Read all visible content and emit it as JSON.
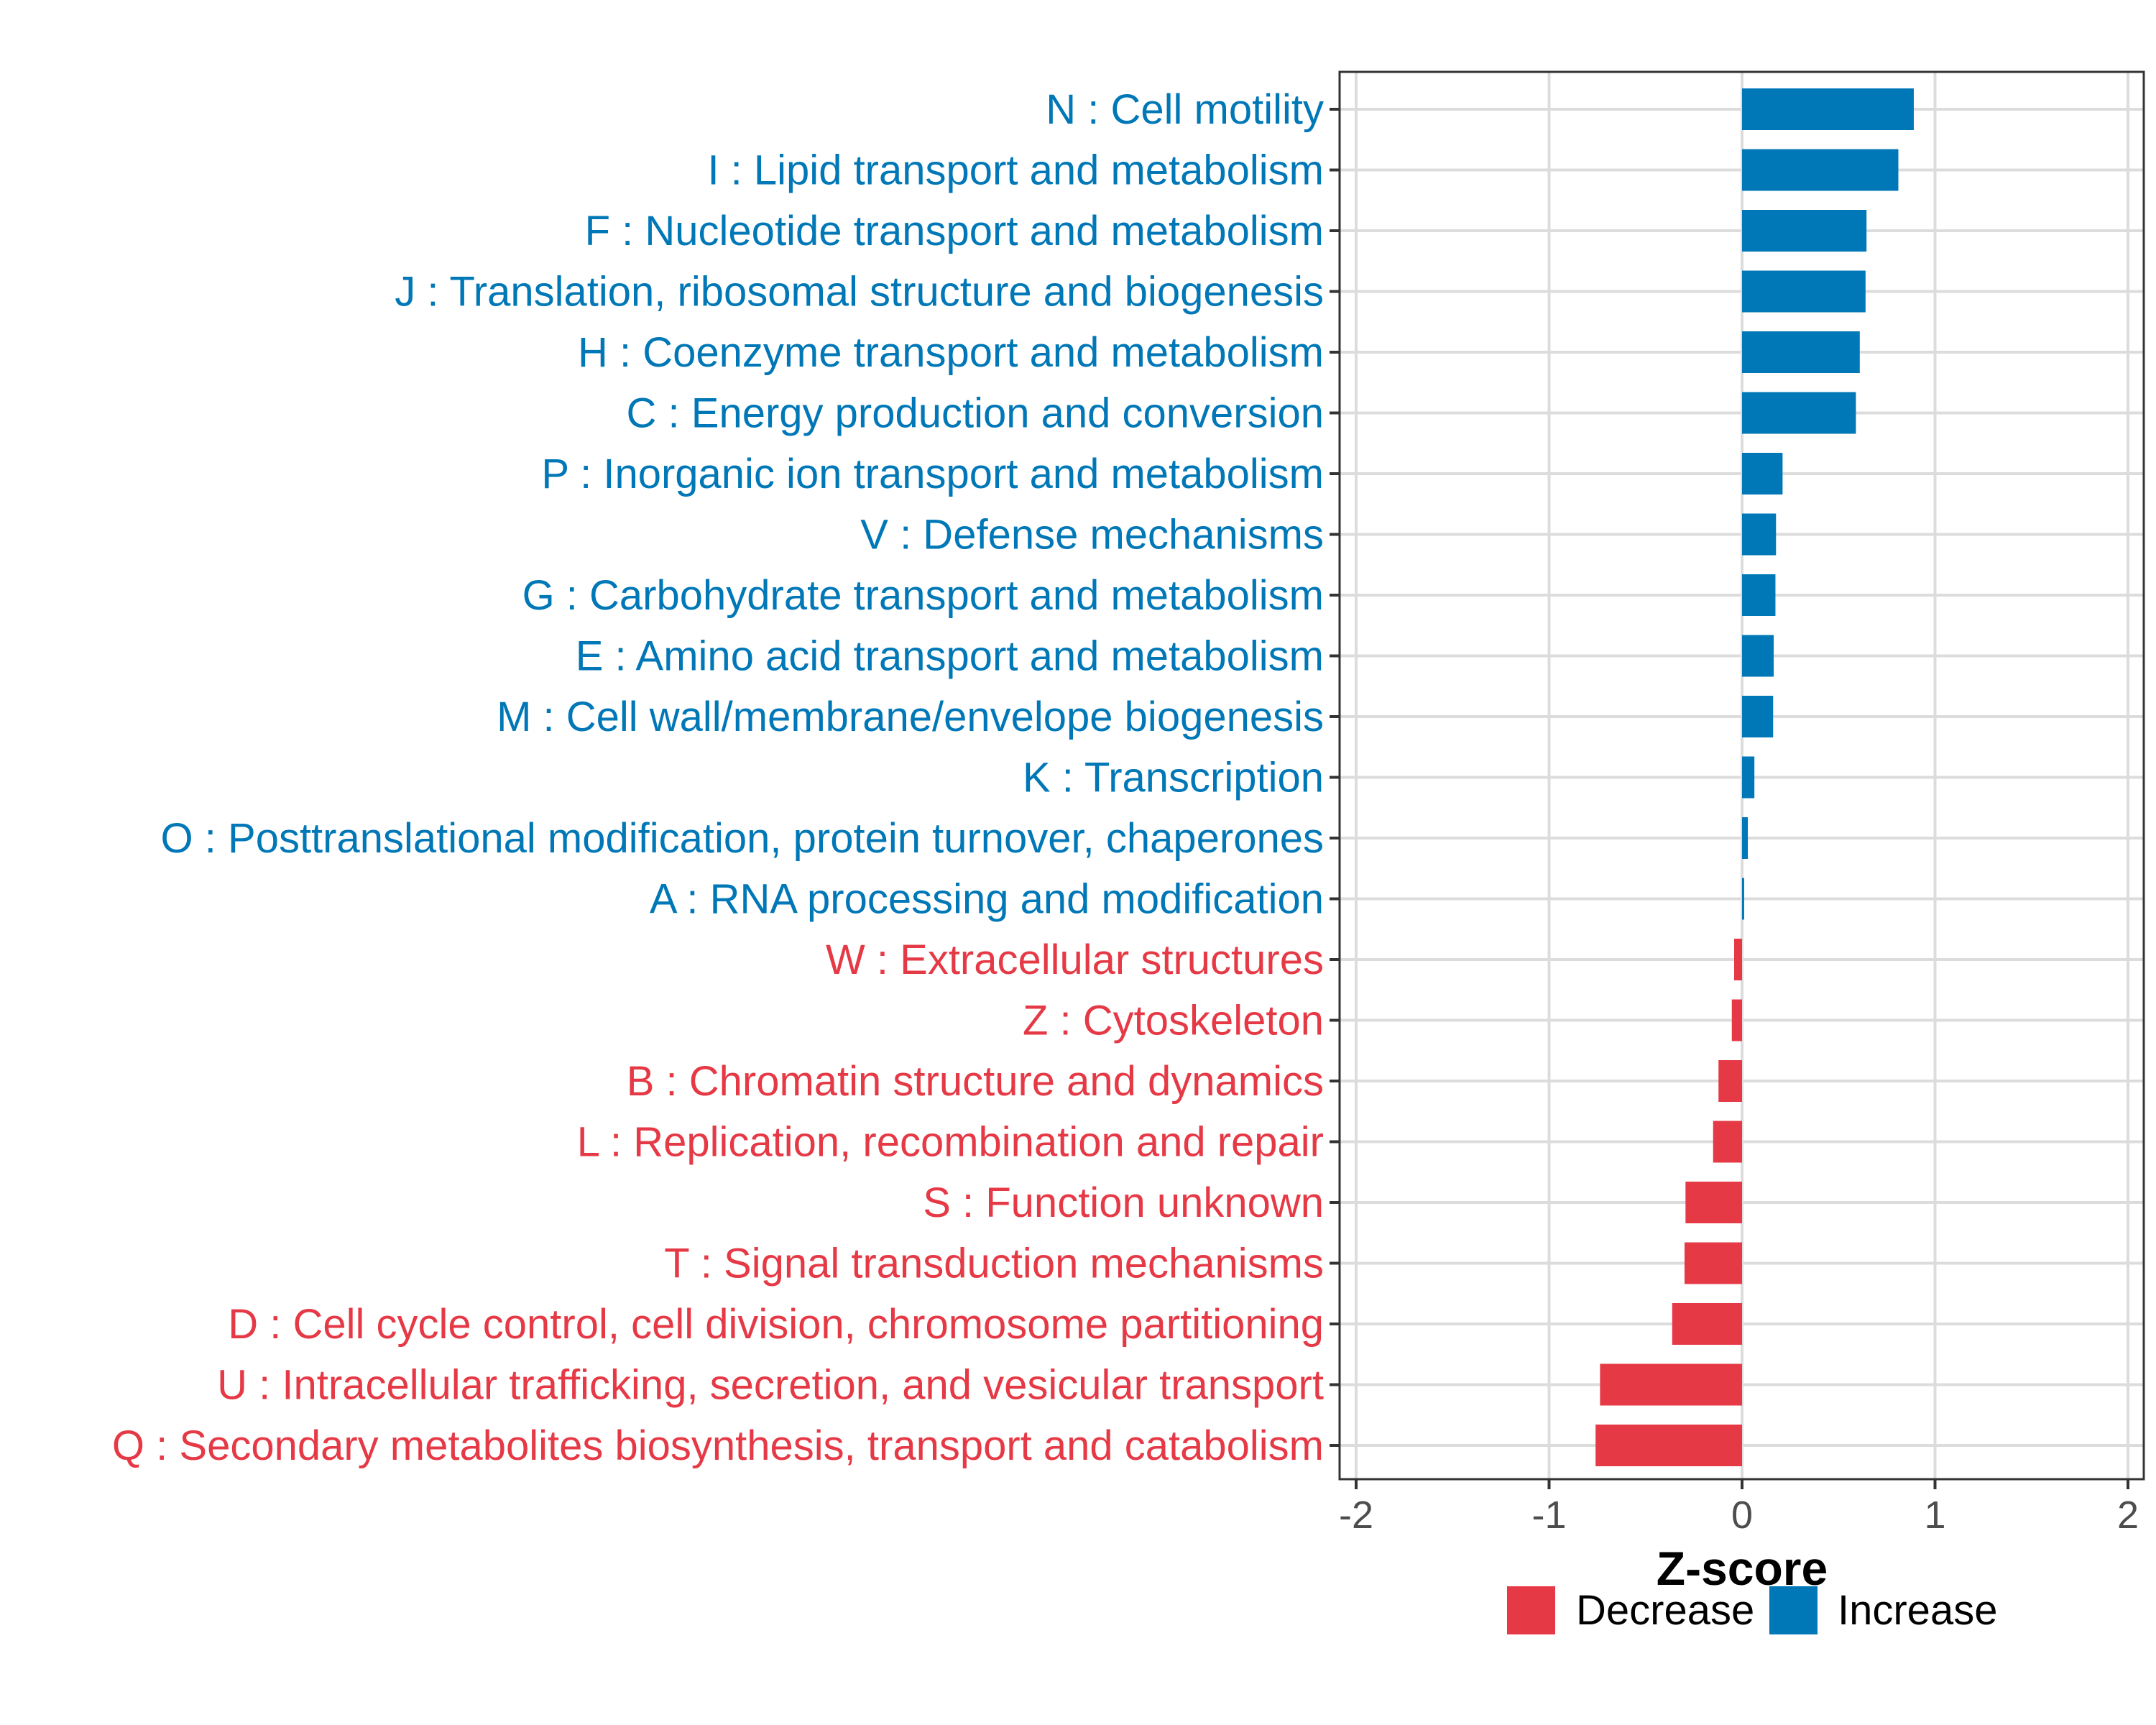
{
  "chart_data": {
    "type": "bar",
    "orientation": "horizontal",
    "title": "",
    "xlabel": "Z-score",
    "ylabel": "",
    "xlim": [
      -2,
      2
    ],
    "xticks": [
      -2,
      -1,
      0,
      1,
      2
    ],
    "xtick_labels": [
      "-2",
      "-1",
      "0",
      "1",
      "2"
    ],
    "grid": true,
    "legend": {
      "placement": "bottom",
      "entries": [
        {
          "label": "Decrease",
          "color": "#E63946"
        },
        {
          "label": "Increase",
          "color": "#0077B6"
        }
      ]
    },
    "colors": {
      "Increase": "#0077B6",
      "Decrease": "#E63946"
    },
    "categories": [
      "N : Cell motility",
      "I : Lipid transport and metabolism",
      "F : Nucleotide transport and metabolism",
      "J : Translation, ribosomal structure and biogenesis",
      "H : Coenzyme transport and metabolism",
      "C : Energy production and conversion",
      "P : Inorganic ion transport and metabolism",
      "V : Defense mechanisms",
      "G : Carbohydrate transport and metabolism",
      "E : Amino acid transport and metabolism",
      "M : Cell wall/membrane/envelope biogenesis",
      "K : Transcription",
      "O : Posttranslational modification, protein turnover, chaperones",
      "A : RNA processing and modification",
      "W : Extracellular structures",
      "Z : Cytoskeleton",
      "B : Chromatin structure and dynamics",
      "L : Replication, recombination and repair",
      "S : Function unknown",
      "T : Signal transduction mechanisms",
      "D : Cell cycle control, cell division, chromosome partitioning",
      "U : Intracellular trafficking, secretion, and vesicular transport",
      "Q : Secondary metabolites biosynthesis, transport and catabolism"
    ],
    "values": [
      0.89,
      0.81,
      0.645,
      0.64,
      0.61,
      0.59,
      0.21,
      0.176,
      0.173,
      0.164,
      0.161,
      0.064,
      0.03,
      0.011,
      -0.041,
      -0.053,
      -0.122,
      -0.15,
      -0.293,
      -0.298,
      -0.362,
      -0.736,
      -0.759
    ]
  }
}
